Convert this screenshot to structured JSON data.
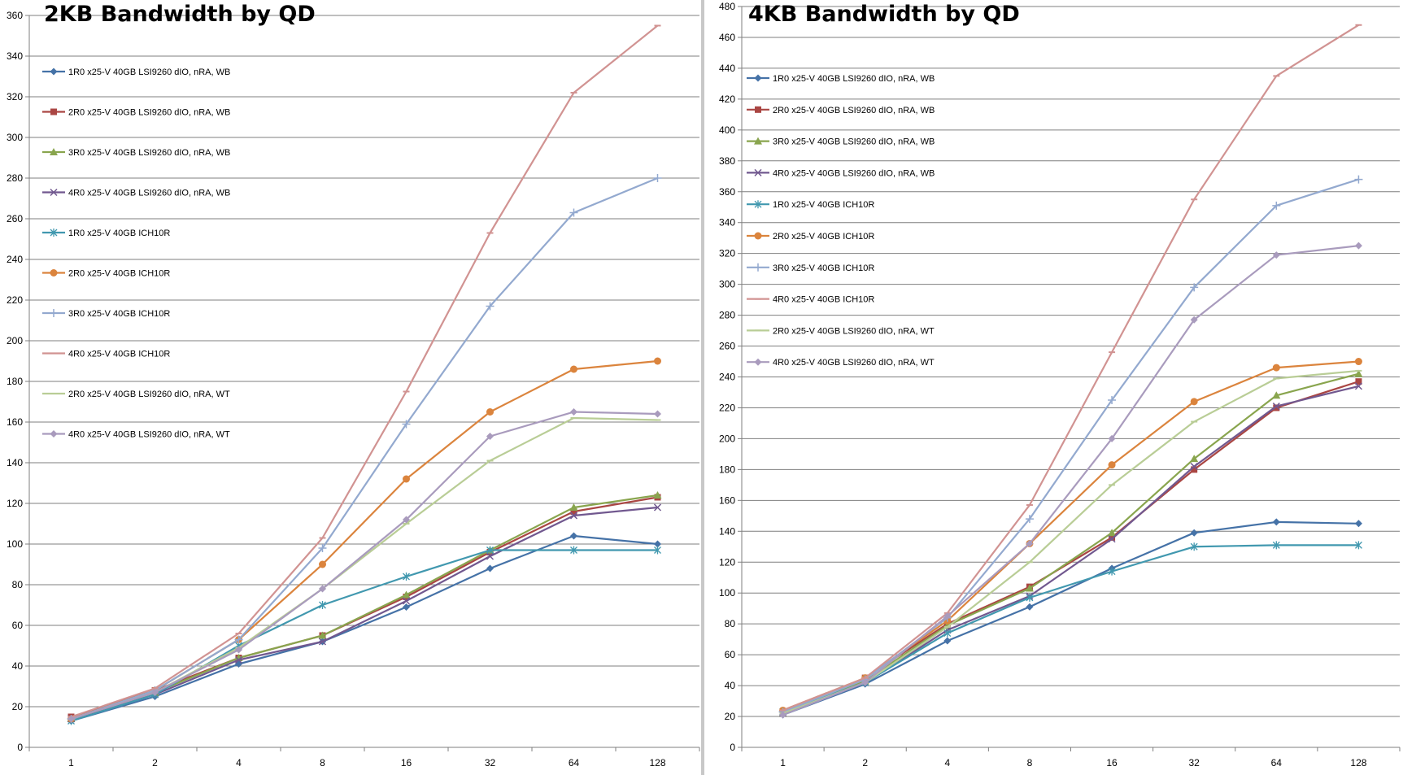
{
  "chart_data": [
    {
      "type": "line",
      "title": "2KB Bandwidth by QD",
      "xlabel": "",
      "ylabel": "",
      "categories": [
        "1",
        "2",
        "4",
        "8",
        "16",
        "32",
        "64",
        "128"
      ],
      "ylim": [
        0,
        360
      ],
      "ystep": 20,
      "grid": true,
      "legend_position": "top-left",
      "series": [
        {
          "name": "1R0 x25-V 40GB LSI9260 dIO, nRA, WB",
          "color": "#4572a7",
          "marker": "diamond",
          "values": [
            13,
            25,
            41,
            52,
            69,
            88,
            104,
            100
          ]
        },
        {
          "name": "2R0 x25-V 40GB LSI9260 dIO, nRA, WB",
          "color": "#aa4643",
          "marker": "square",
          "values": [
            15,
            28,
            44,
            55,
            74,
            96,
            116,
            123
          ]
        },
        {
          "name": "3R0 x25-V 40GB LSI9260 dIO, nRA, WB",
          "color": "#89a54e",
          "marker": "triangle",
          "values": [
            14,
            27,
            44,
            55,
            75,
            97,
            118,
            124
          ]
        },
        {
          "name": "4R0 x25-V 40GB LSI9260 dIO, nRA, WB",
          "color": "#71588f",
          "marker": "x",
          "values": [
            14,
            26,
            43,
            52,
            72,
            94,
            114,
            118
          ]
        },
        {
          "name": "1R0 x25-V 40GB ICH10R",
          "color": "#4198af",
          "marker": "asterisk",
          "values": [
            13,
            26,
            50,
            70,
            84,
            97,
            97,
            97
          ]
        },
        {
          "name": "2R0 x25-V 40GB ICH10R",
          "color": "#db843d",
          "marker": "circle",
          "values": [
            14,
            28,
            53,
            90,
            132,
            165,
            186,
            190
          ]
        },
        {
          "name": "3R0 x25-V 40GB ICH10R",
          "color": "#93a9cf",
          "marker": "plus",
          "values": [
            14,
            28,
            53,
            98,
            159,
            217,
            263,
            280
          ]
        },
        {
          "name": "4R0 x25-V 40GB ICH10R",
          "color": "#d19392",
          "marker": "dash",
          "values": [
            15,
            29,
            56,
            103,
            175,
            253,
            322,
            355
          ]
        },
        {
          "name": "2R0 x25-V 40GB LSI9260 dIO, nRA, WT",
          "color": "#b9cd96",
          "marker": "dash",
          "values": [
            14,
            27,
            49,
            78,
            110,
            141,
            162,
            161
          ]
        },
        {
          "name": "4R0 x25-V 40GB LSI9260 dIO, nRA, WT",
          "color": "#a99bbd",
          "marker": "diamond",
          "values": [
            14,
            27,
            48,
            78,
            112,
            153,
            165,
            164
          ]
        }
      ]
    },
    {
      "type": "line",
      "title": "4KB Bandwidth by QD",
      "xlabel": "",
      "ylabel": "",
      "categories": [
        "1",
        "2",
        "4",
        "8",
        "16",
        "32",
        "64",
        "128"
      ],
      "ylim": [
        0,
        480
      ],
      "ystep": 20,
      "grid": true,
      "legend_position": "top-left",
      "series": [
        {
          "name": "1R0 x25-V 40GB LSI9260 dIO, nRA, WB",
          "color": "#4572a7",
          "marker": "diamond",
          "values": [
            21,
            41,
            69,
            91,
            116,
            139,
            146,
            145
          ]
        },
        {
          "name": "2R0 x25-V 40GB LSI9260 dIO, nRA, WB",
          "color": "#aa4643",
          "marker": "square",
          "values": [
            23,
            45,
            80,
            104,
            136,
            180,
            220,
            237
          ]
        },
        {
          "name": "3R0 x25-V 40GB LSI9260 dIO, nRA, WB",
          "color": "#89a54e",
          "marker": "triangle",
          "values": [
            22,
            43,
            79,
            103,
            139,
            187,
            228,
            242
          ]
        },
        {
          "name": "4R0 x25-V 40GB LSI9260 dIO, nRA, WB",
          "color": "#71588f",
          "marker": "x",
          "values": [
            22,
            42,
            76,
            98,
            135,
            182,
            221,
            234
          ]
        },
        {
          "name": "1R0 x25-V 40GB ICH10R",
          "color": "#4198af",
          "marker": "asterisk",
          "values": [
            23,
            42,
            74,
            97,
            114,
            130,
            131,
            131
          ]
        },
        {
          "name": "2R0 x25-V 40GB ICH10R",
          "color": "#db843d",
          "marker": "circle",
          "values": [
            24,
            45,
            82,
            132,
            183,
            224,
            246,
            250
          ]
        },
        {
          "name": "3R0 x25-V 40GB ICH10R",
          "color": "#93a9cf",
          "marker": "plus",
          "values": [
            23,
            44,
            84,
            148,
            225,
            298,
            351,
            368
          ]
        },
        {
          "name": "4R0 x25-V 40GB ICH10R",
          "color": "#d19392",
          "marker": "dash",
          "values": [
            24,
            45,
            87,
            157,
            256,
            355,
            435,
            468
          ]
        },
        {
          "name": "2R0 x25-V 40GB LSI9260 dIO, nRA, WT",
          "color": "#b9cd96",
          "marker": "dash",
          "values": [
            22,
            42,
            78,
            120,
            170,
            211,
            239,
            244
          ]
        },
        {
          "name": "4R0 x25-V 40GB LSI9260 dIO, nRA, WT",
          "color": "#a99bbd",
          "marker": "diamond",
          "values": [
            21,
            42,
            85,
            132,
            200,
            277,
            319,
            325
          ]
        }
      ]
    }
  ]
}
